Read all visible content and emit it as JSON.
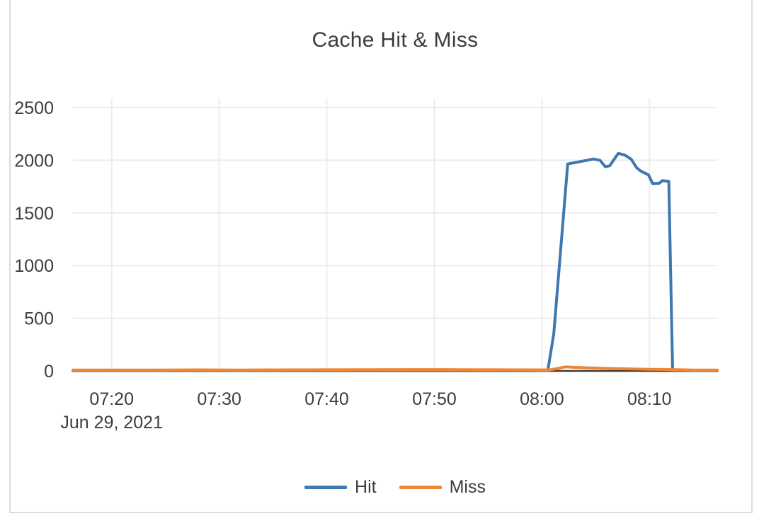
{
  "title": "Cache Hit & Miss",
  "chart_data": {
    "type": "line",
    "title": "Cache Hit & Miss",
    "grid": true,
    "legend_position": "bottom-center",
    "x_axis": {
      "date_label": "Jun 29, 2021",
      "tick_minutes_after_0700": [
        20,
        30,
        40,
        50,
        60,
        70
      ],
      "tick_labels": [
        "07:20",
        "07:30",
        "07:40",
        "07:50",
        "08:00",
        "08:10"
      ],
      "range_minutes_after_0700": [
        16.4,
        76.3
      ]
    },
    "y_axis": {
      "tick_values": [
        0,
        500,
        1000,
        1500,
        2000,
        2500
      ],
      "tick_labels": [
        "0",
        "500",
        "1000",
        "1500",
        "2000",
        "2500"
      ],
      "range": [
        0,
        2587
      ]
    },
    "colors": {
      "hit": "#3f77b0",
      "miss": "#ef8633",
      "gridline": "#ececec",
      "zeroline": "#3b3b3b",
      "text": "#3d3d3d",
      "frame_border": "#dcdcdc"
    },
    "series": [
      {
        "name": "Hit",
        "color": "#3f77b0",
        "points_minutes_value": [
          [
            16.4,
            3
          ],
          [
            20,
            3
          ],
          [
            24,
            3
          ],
          [
            28,
            3
          ],
          [
            32,
            3
          ],
          [
            36,
            3
          ],
          [
            40,
            3
          ],
          [
            44,
            3
          ],
          [
            48,
            3
          ],
          [
            52,
            3
          ],
          [
            56,
            3
          ],
          [
            59,
            3
          ],
          [
            60.55,
            4
          ],
          [
            61.1,
            350
          ],
          [
            62.4,
            1965
          ],
          [
            63.2,
            1980
          ],
          [
            64.8,
            2012
          ],
          [
            65.4,
            2000
          ],
          [
            65.9,
            1938
          ],
          [
            66.3,
            1947
          ],
          [
            67.1,
            2065
          ],
          [
            67.7,
            2050
          ],
          [
            68.3,
            2010
          ],
          [
            68.8,
            1930
          ],
          [
            69.2,
            1897
          ],
          [
            69.9,
            1862
          ],
          [
            70.3,
            1778
          ],
          [
            70.9,
            1781
          ],
          [
            71.2,
            1806
          ],
          [
            71.8,
            1800
          ],
          [
            72.15,
            3
          ],
          [
            73,
            3
          ],
          [
            74.5,
            3
          ],
          [
            76.3,
            3
          ]
        ]
      },
      {
        "name": "Miss",
        "color": "#ef8633",
        "points_minutes_value": [
          [
            16.4,
            8
          ],
          [
            20,
            8
          ],
          [
            24,
            9
          ],
          [
            28,
            10
          ],
          [
            32,
            9
          ],
          [
            36,
            10
          ],
          [
            40,
            11
          ],
          [
            44,
            12
          ],
          [
            48,
            13
          ],
          [
            52,
            12
          ],
          [
            56,
            11
          ],
          [
            59,
            10
          ],
          [
            60.8,
            11
          ],
          [
            61.5,
            24
          ],
          [
            62.2,
            38
          ],
          [
            63,
            34
          ],
          [
            64,
            30
          ],
          [
            65.5,
            26
          ],
          [
            67,
            22
          ],
          [
            68.5,
            18
          ],
          [
            70,
            15
          ],
          [
            71,
            14
          ],
          [
            72,
            13
          ],
          [
            73,
            11
          ],
          [
            74,
            9
          ],
          [
            75.2,
            8
          ],
          [
            76.3,
            8
          ]
        ]
      }
    ]
  }
}
